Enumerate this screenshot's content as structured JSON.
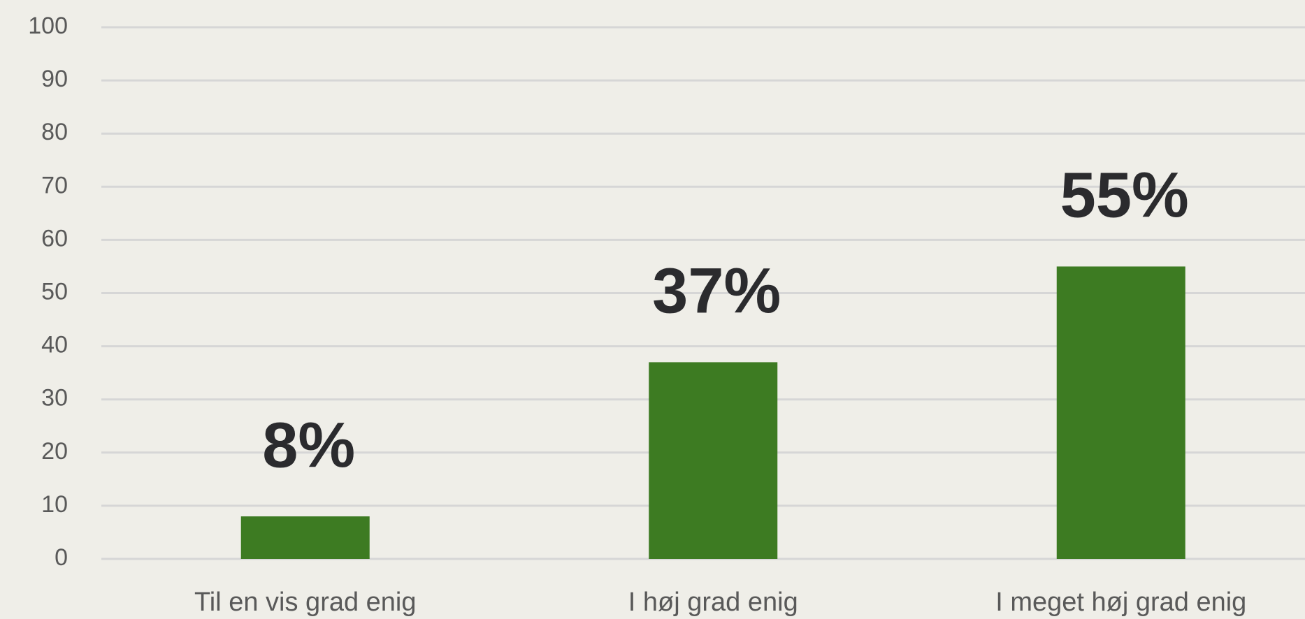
{
  "chart_data": {
    "type": "bar",
    "categories": [
      "Til en vis grad enig",
      "I høj grad enig",
      "I meget høj grad enig"
    ],
    "values": [
      8,
      37,
      55
    ],
    "value_labels": [
      "8%",
      "37%",
      "55%"
    ],
    "color": "#3d7b22",
    "ylim": [
      0,
      100
    ],
    "yticks": [
      0,
      10,
      20,
      30,
      40,
      50,
      60,
      70,
      80,
      90,
      100
    ],
    "grid": true
  }
}
